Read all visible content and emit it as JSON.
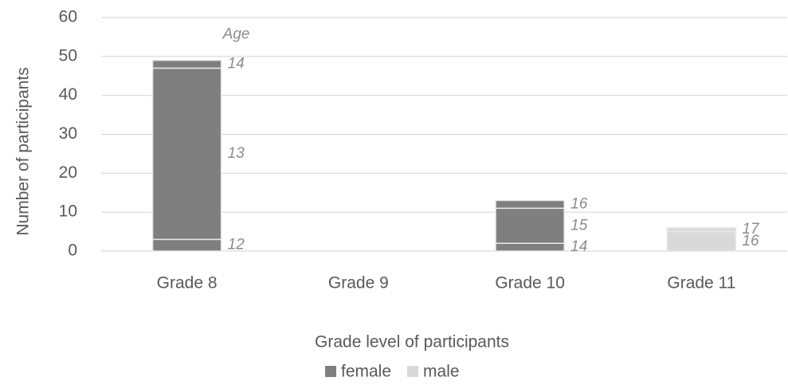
{
  "chart_data": {
    "type": "stacked_bar",
    "x_label": "Grade level of participants",
    "y_label": "Number of participants",
    "annotation": "Age",
    "categories": [
      "Grade 8",
      "Grade 9",
      "Grade 10",
      "Grade 11"
    ],
    "series": [
      {
        "name": "female",
        "color": "#7f7f7f",
        "stacks": [
          [
            {
              "label": "12",
              "value": 3
            },
            {
              "label": "13",
              "value": 44
            },
            {
              "label": "14",
              "value": 2
            }
          ],
          [],
          [
            {
              "label": "14",
              "value": 2
            },
            {
              "label": "15",
              "value": 9
            },
            {
              "label": "16",
              "value": 2
            }
          ],
          []
        ]
      },
      {
        "name": "male",
        "color": "#d9d9d9",
        "stacks": [
          [],
          [],
          [],
          [
            {
              "label": "16",
              "value": 5
            },
            {
              "label": "17",
              "value": 1
            }
          ]
        ]
      }
    ],
    "ylim": [
      0,
      60
    ],
    "yticks": [
      0,
      10,
      20,
      30,
      40,
      50,
      60
    ],
    "grid": true
  }
}
